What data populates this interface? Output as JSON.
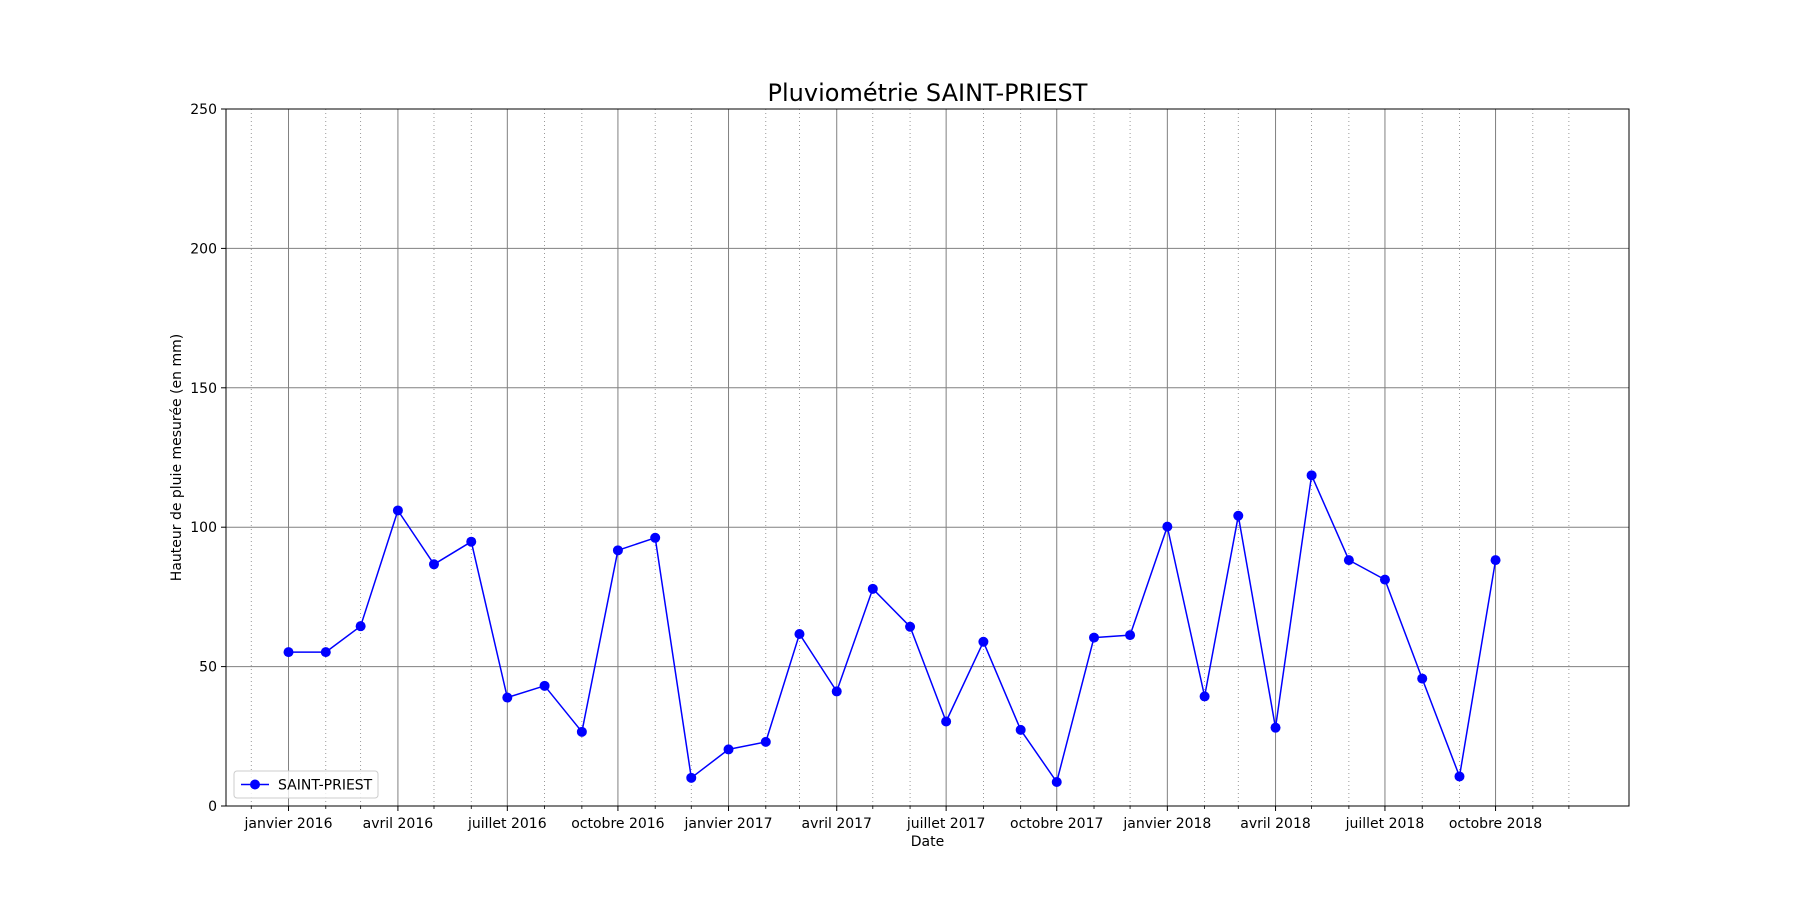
{
  "chart_data": {
    "type": "line",
    "title": "Pluviométrie SAINT-PRIEST",
    "xlabel": "Date",
    "ylabel": "Hauteur de pluie mesurée (en mm)",
    "ylim": [
      0,
      250
    ],
    "yticks": [
      0,
      50,
      100,
      150,
      200,
      250
    ],
    "xlim": [
      "2015-11-10",
      "2019-01-20"
    ],
    "xticks": [
      {
        "date": "2016-01-01",
        "label": "janvier 2016"
      },
      {
        "date": "2016-04-01",
        "label": "avril 2016"
      },
      {
        "date": "2016-07-01",
        "label": "juillet 2016"
      },
      {
        "date": "2016-10-01",
        "label": "octobre 2016"
      },
      {
        "date": "2017-01-01",
        "label": "janvier 2017"
      },
      {
        "date": "2017-04-01",
        "label": "avril 2017"
      },
      {
        "date": "2017-07-01",
        "label": "juillet 2017"
      },
      {
        "date": "2017-10-01",
        "label": "octobre 2017"
      },
      {
        "date": "2018-01-01",
        "label": "janvier 2018"
      },
      {
        "date": "2018-04-01",
        "label": "avril 2018"
      },
      {
        "date": "2018-07-01",
        "label": "juillet 2018"
      },
      {
        "date": "2018-10-01",
        "label": "octobre 2018"
      }
    ],
    "minor_xticks": [
      "2015-12-01",
      "2016-02-01",
      "2016-03-01",
      "2016-05-01",
      "2016-06-01",
      "2016-08-01",
      "2016-09-01",
      "2016-11-01",
      "2016-12-01",
      "2017-02-01",
      "2017-03-01",
      "2017-05-01",
      "2017-06-01",
      "2017-08-01",
      "2017-09-01",
      "2017-11-01",
      "2017-12-01",
      "2018-02-01",
      "2018-03-01",
      "2018-05-01",
      "2018-06-01",
      "2018-08-01",
      "2018-09-01",
      "2018-11-01",
      "2018-12-01"
    ],
    "grid": {
      "major": true,
      "minor": true
    },
    "legend_position": "lower-left",
    "series": [
      {
        "name": "SAINT-PRIEST",
        "color": "#0000ff",
        "marker": "circle",
        "x": [
          "2016-01-01",
          "2016-02-01",
          "2016-03-01",
          "2016-04-01",
          "2016-05-01",
          "2016-06-01",
          "2016-07-01",
          "2016-08-01",
          "2016-09-01",
          "2016-10-01",
          "2016-11-01",
          "2016-12-01",
          "2017-01-01",
          "2017-02-01",
          "2017-03-01",
          "2017-04-01",
          "2017-05-01",
          "2017-06-01",
          "2017-07-01",
          "2017-08-01",
          "2017-09-01",
          "2017-10-01",
          "2017-11-01",
          "2017-12-01",
          "2018-01-01",
          "2018-02-01",
          "2018-03-01",
          "2018-04-01",
          "2018-05-01",
          "2018-06-01",
          "2018-07-01",
          "2018-08-01",
          "2018-09-01",
          "2018-10-01"
        ],
        "values": [
          55.2,
          55.2,
          64.5,
          106.0,
          86.7,
          94.8,
          38.9,
          43.1,
          26.6,
          91.7,
          96.2,
          10.1,
          20.3,
          23.0,
          61.7,
          41.1,
          77.9,
          64.3,
          30.3,
          58.9,
          27.3,
          8.6,
          60.4,
          61.3,
          100.2,
          39.3,
          104.1,
          28.1,
          118.6,
          88.2,
          81.2,
          45.7,
          10.6,
          88.2
        ]
      }
    ]
  }
}
